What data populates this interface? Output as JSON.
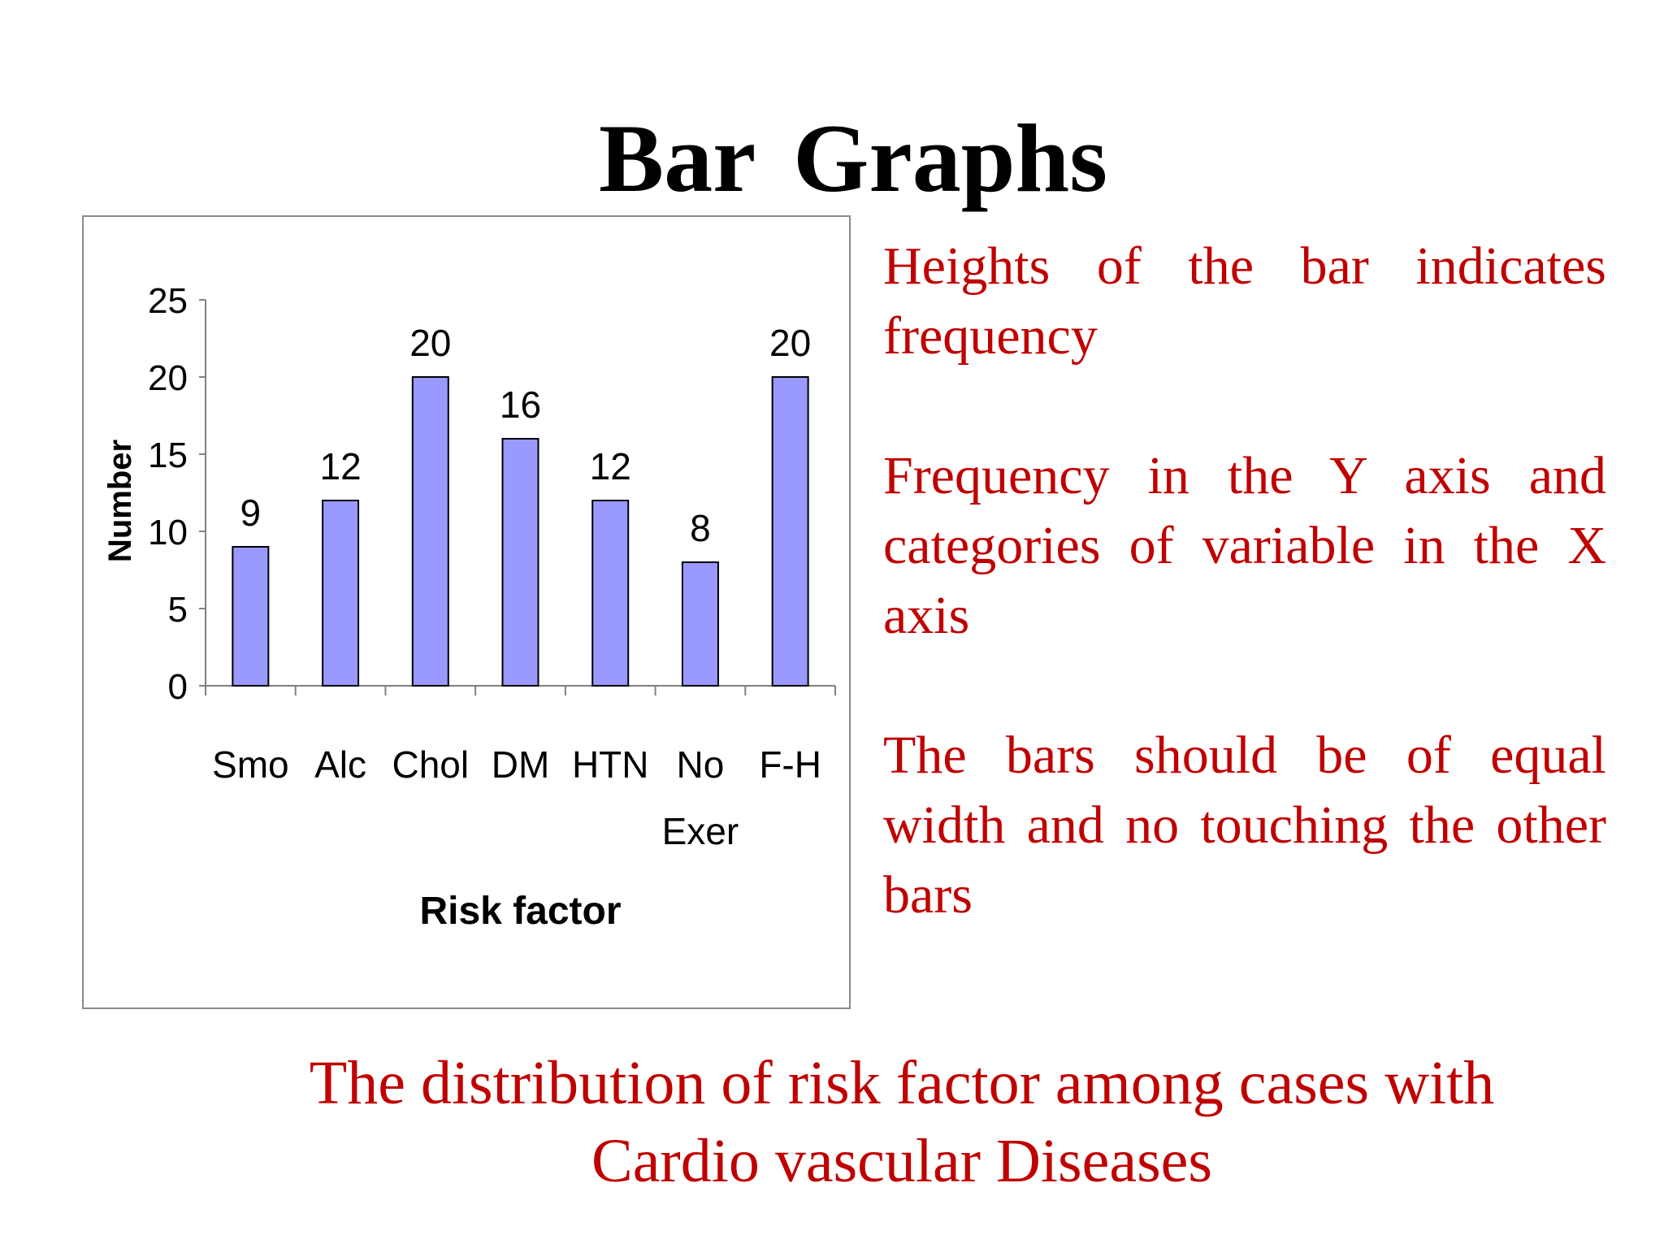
{
  "slide": {
    "title": "Bar  Graphs",
    "notes": [
      "Heights of the bar indicates frequency",
      "Frequency in the Y axis and categories of variable in the X axis",
      "The bars should be of equal width and no touching the other bars"
    ],
    "caption_line1": "The distribution  of risk factor among cases with",
    "caption_line2": "Cardio vascular Diseases"
  },
  "colors": {
    "bar_fill": "#9999ff",
    "bar_stroke": "#000000",
    "note_text": "#c00000",
    "title_text": "#000000"
  },
  "chart_data": {
    "type": "bar",
    "categories": [
      "Smo",
      "Alc",
      "Chol",
      "DM",
      "HTN",
      "No Exer",
      "F-H"
    ],
    "category_lines": [
      [
        "Smo"
      ],
      [
        "Alc"
      ],
      [
        "Chol"
      ],
      [
        "DM"
      ],
      [
        "HTN"
      ],
      [
        "No",
        "Exer"
      ],
      [
        "F-H"
      ]
    ],
    "values": [
      9,
      12,
      20,
      16,
      12,
      8,
      20
    ],
    "data_labels": [
      "9",
      "12",
      "20",
      "16",
      "12",
      "8",
      "20"
    ],
    "title": "",
    "xlabel": "Risk factor",
    "ylabel": "Number",
    "ylim": [
      0,
      25
    ],
    "yticks": [
      0,
      5,
      10,
      15,
      20,
      25
    ],
    "grid": false,
    "legend": "none"
  }
}
